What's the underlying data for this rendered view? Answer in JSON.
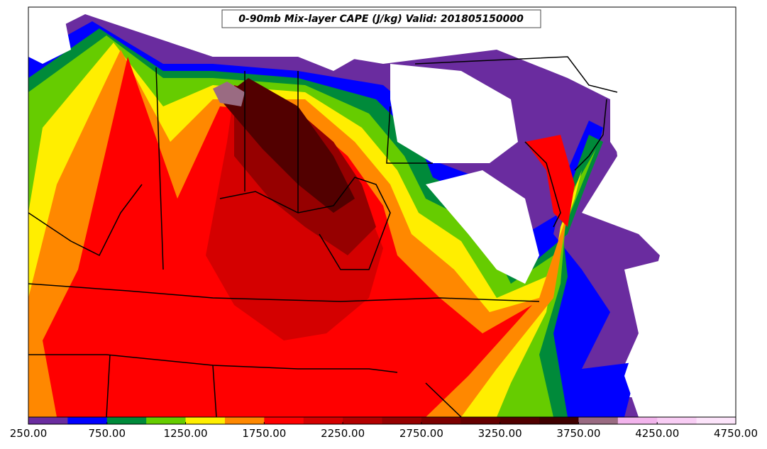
{
  "map": {
    "title": "0-90mb Mix-layer CAPE (J/kg) Valid: 201805150000",
    "colorbar": {
      "range": [
        250,
        4750
      ],
      "colors": [
        "#6a2c9f",
        "#0000ff",
        "#008a3a",
        "#66cc00",
        "#ffee00",
        "#ff8800",
        "#ff0000",
        "#d40000",
        "#b30000",
        "#960000",
        "#7c0000",
        "#660000",
        "#520000",
        "#400000",
        "#9a6b82",
        "#f2b4ec",
        "#f8cdf4",
        "#fce4fa"
      ],
      "ticks": [
        {
          "value": 250,
          "label": "250.00"
        },
        {
          "value": 750,
          "label": "750.00"
        },
        {
          "value": 1250,
          "label": "1250.00"
        },
        {
          "value": 1750,
          "label": "1750.00"
        },
        {
          "value": 2250,
          "label": "2250.00"
        },
        {
          "value": 2750,
          "label": "2750.00"
        },
        {
          "value": 3250,
          "label": "3250.00"
        },
        {
          "value": 3750,
          "label": "3750.00"
        },
        {
          "value": 4250,
          "label": "4250.00"
        },
        {
          "value": 4750,
          "label": "4750.00"
        }
      ]
    }
  }
}
